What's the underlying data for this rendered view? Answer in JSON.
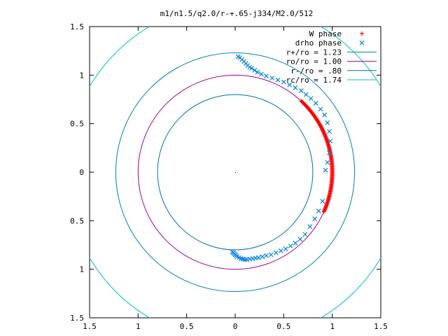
{
  "chart_data": {
    "type": "scatter",
    "title": "m1/n1.5/q2.0/r-+.65-j334/M2.0/512",
    "xlabel": "",
    "ylabel": "",
    "xlim": [
      -1.5,
      1.5
    ],
    "ylim": [
      -1.5,
      1.5
    ],
    "xticks": [
      -1.5,
      -1,
      -0.5,
      0,
      0.5,
      1,
      1.5
    ],
    "yticks": [
      -1.5,
      -1,
      -0.5,
      0,
      0.5,
      1,
      1.5
    ],
    "xtick_labels": [
      "1.5",
      "1",
      "0.5",
      "0",
      "0.5",
      "1",
      "1.5"
    ],
    "ytick_labels": [
      "1.5",
      "1",
      "0.5",
      "0",
      "0.5",
      "1",
      "1.5"
    ],
    "grid": false,
    "legend_position": "top-right",
    "series": [
      {
        "name": "W phase",
        "kind": "points",
        "marker": "plus",
        "color": "#ff0000",
        "angle_start_deg": -24,
        "angle_end_deg": 47,
        "count": 120,
        "radius": 1.0
      },
      {
        "name": "drho phase",
        "kind": "points",
        "marker": "x",
        "color": "#0080e0",
        "points": [
          [
            0.03,
            1.19
          ],
          [
            0.05,
            1.18
          ],
          [
            0.07,
            1.16
          ],
          [
            0.09,
            1.14
          ],
          [
            0.11,
            1.12
          ],
          [
            0.13,
            1.1
          ],
          [
            0.15,
            1.08
          ],
          [
            0.17,
            1.07
          ],
          [
            0.2,
            1.05
          ],
          [
            0.23,
            1.03
          ],
          [
            0.27,
            1.01
          ],
          [
            0.32,
            0.99
          ],
          [
            0.38,
            0.97
          ],
          [
            0.44,
            0.95
          ],
          [
            0.5,
            0.93
          ],
          [
            0.56,
            0.9
          ],
          [
            0.62,
            0.87
          ],
          [
            0.68,
            0.84
          ],
          [
            0.73,
            0.8
          ],
          [
            0.78,
            0.76
          ],
          [
            0.83,
            0.71
          ],
          [
            0.88,
            0.65
          ],
          [
            0.92,
            0.59
          ],
          [
            0.95,
            0.51
          ],
          [
            0.97,
            0.42
          ],
          [
            0.98,
            0.32
          ],
          [
            0.97,
            0.2
          ],
          [
            0.95,
            0.1
          ],
          [
            0.93,
            0.02
          ],
          [
            0.9,
            -0.3
          ],
          [
            0.86,
            -0.4
          ],
          [
            0.82,
            -0.48
          ],
          [
            0.77,
            -0.56
          ],
          [
            0.72,
            -0.64
          ],
          [
            0.67,
            -0.69
          ],
          [
            0.62,
            -0.73
          ],
          [
            0.57,
            -0.76
          ],
          [
            0.52,
            -0.79
          ],
          [
            0.47,
            -0.81
          ],
          [
            0.42,
            -0.83
          ],
          [
            0.37,
            -0.85
          ],
          [
            0.32,
            -0.86
          ],
          [
            0.28,
            -0.87
          ],
          [
            0.24,
            -0.88
          ],
          [
            0.21,
            -0.885
          ],
          [
            0.18,
            -0.89
          ],
          [
            0.15,
            -0.895
          ],
          [
            0.12,
            -0.9
          ],
          [
            0.1,
            -0.9
          ],
          [
            0.08,
            -0.895
          ],
          [
            0.06,
            -0.89
          ],
          [
            0.04,
            -0.88
          ],
          [
            0.02,
            -0.87
          ],
          [
            0.01,
            -0.86
          ],
          [
            0.0,
            -0.85
          ],
          [
            -0.01,
            -0.84
          ],
          [
            -0.02,
            -0.83
          ],
          [
            -0.03,
            -0.82
          ]
        ]
      },
      {
        "name": "r+/ro = 1.23",
        "kind": "circle",
        "radius": 1.23,
        "color": "#0080c0"
      },
      {
        "name": "ro/ro = 1.00",
        "kind": "circle",
        "radius": 1.0,
        "color": "#a000a0"
      },
      {
        "name": "r-/ro = .80",
        "kind": "circle",
        "radius": 0.8,
        "color": "#0070b0"
      },
      {
        "name": "rc/ro = 1.74",
        "kind": "circle",
        "radius": 1.74,
        "color": "#00c0c0"
      }
    ]
  }
}
